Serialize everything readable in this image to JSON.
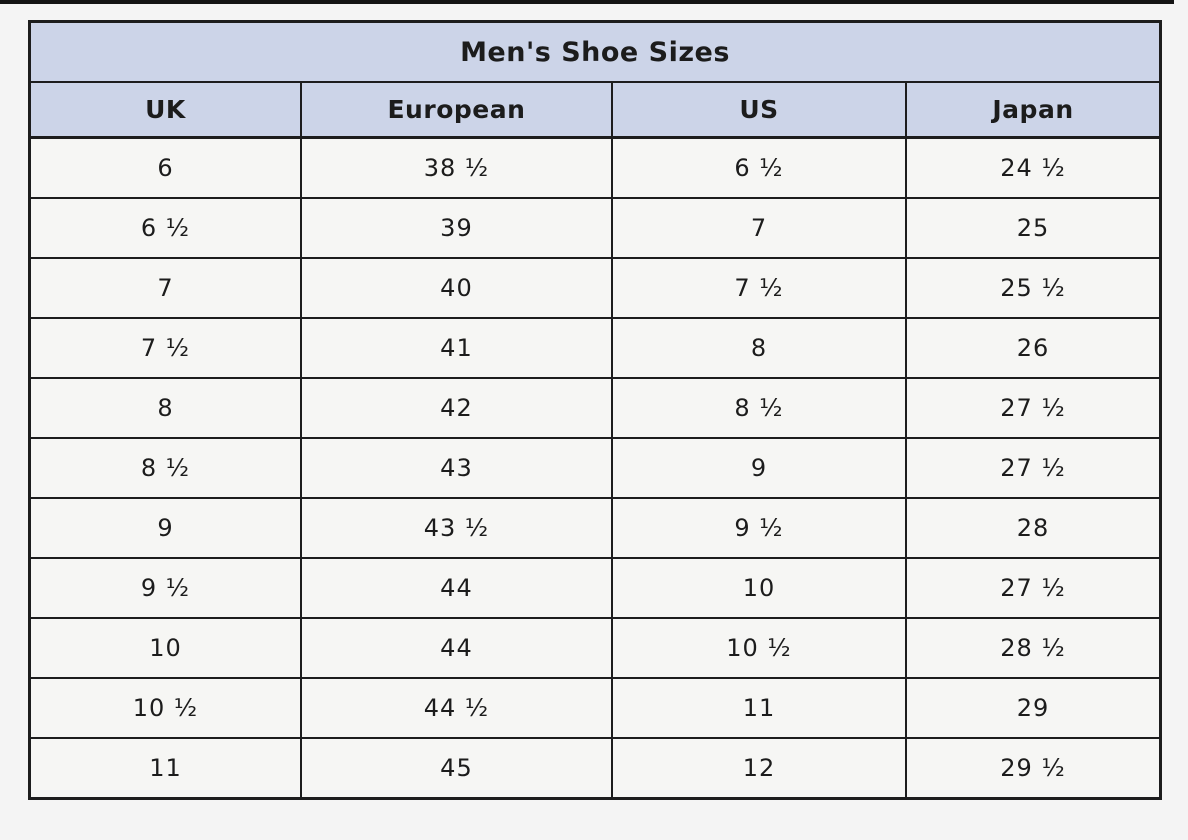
{
  "page": {
    "background": "#f4f4f4",
    "top_strip_color": "#141414"
  },
  "table": {
    "title": "Men's Shoe Sizes",
    "columns": [
      "UK",
      "European",
      "US",
      "Japan"
    ],
    "rows": [
      [
        "6",
        "38 ½",
        "6 ½",
        "24 ½"
      ],
      [
        "6 ½",
        "39",
        "7",
        "25"
      ],
      [
        "7",
        "40",
        "7 ½",
        "25 ½"
      ],
      [
        "7 ½",
        "41",
        "8",
        "26"
      ],
      [
        "8",
        "42",
        "8 ½",
        "27 ½"
      ],
      [
        "8 ½",
        "43",
        "9",
        "27 ½"
      ],
      [
        "9",
        "43 ½",
        "9 ½",
        "28"
      ],
      [
        "9 ½",
        "44",
        "10",
        "27 ½"
      ],
      [
        "10",
        "44",
        "10 ½",
        "28 ½"
      ],
      [
        "10 ½",
        "44 ½",
        "11",
        "29"
      ],
      [
        "11",
        "45",
        "12",
        "29 ½"
      ]
    ],
    "colors": {
      "header_bg": "#ccd4e8",
      "row_bg": "#f6f6f4",
      "border": "#1d1d1d",
      "text": "#1c1c1c"
    }
  },
  "chart_data": {
    "type": "table",
    "title": "Men's Shoe Sizes",
    "columns": [
      "UK",
      "European",
      "US",
      "Japan"
    ],
    "rows": [
      [
        "6",
        "38 ½",
        "6 ½",
        "24 ½"
      ],
      [
        "6 ½",
        "39",
        "7",
        "25"
      ],
      [
        "7",
        "40",
        "7 ½",
        "25 ½"
      ],
      [
        "7 ½",
        "41",
        "8",
        "26"
      ],
      [
        "8",
        "42",
        "8 ½",
        "27 ½"
      ],
      [
        "8 ½",
        "43",
        "9",
        "27 ½"
      ],
      [
        "9",
        "43 ½",
        "9 ½",
        "28"
      ],
      [
        "9 ½",
        "44",
        "10",
        "27 ½"
      ],
      [
        "10",
        "44",
        "10 ½",
        "28 ½"
      ],
      [
        "10 ½",
        "44 ½",
        "11",
        "29"
      ],
      [
        "11",
        "45",
        "12",
        "29 ½"
      ]
    ]
  }
}
